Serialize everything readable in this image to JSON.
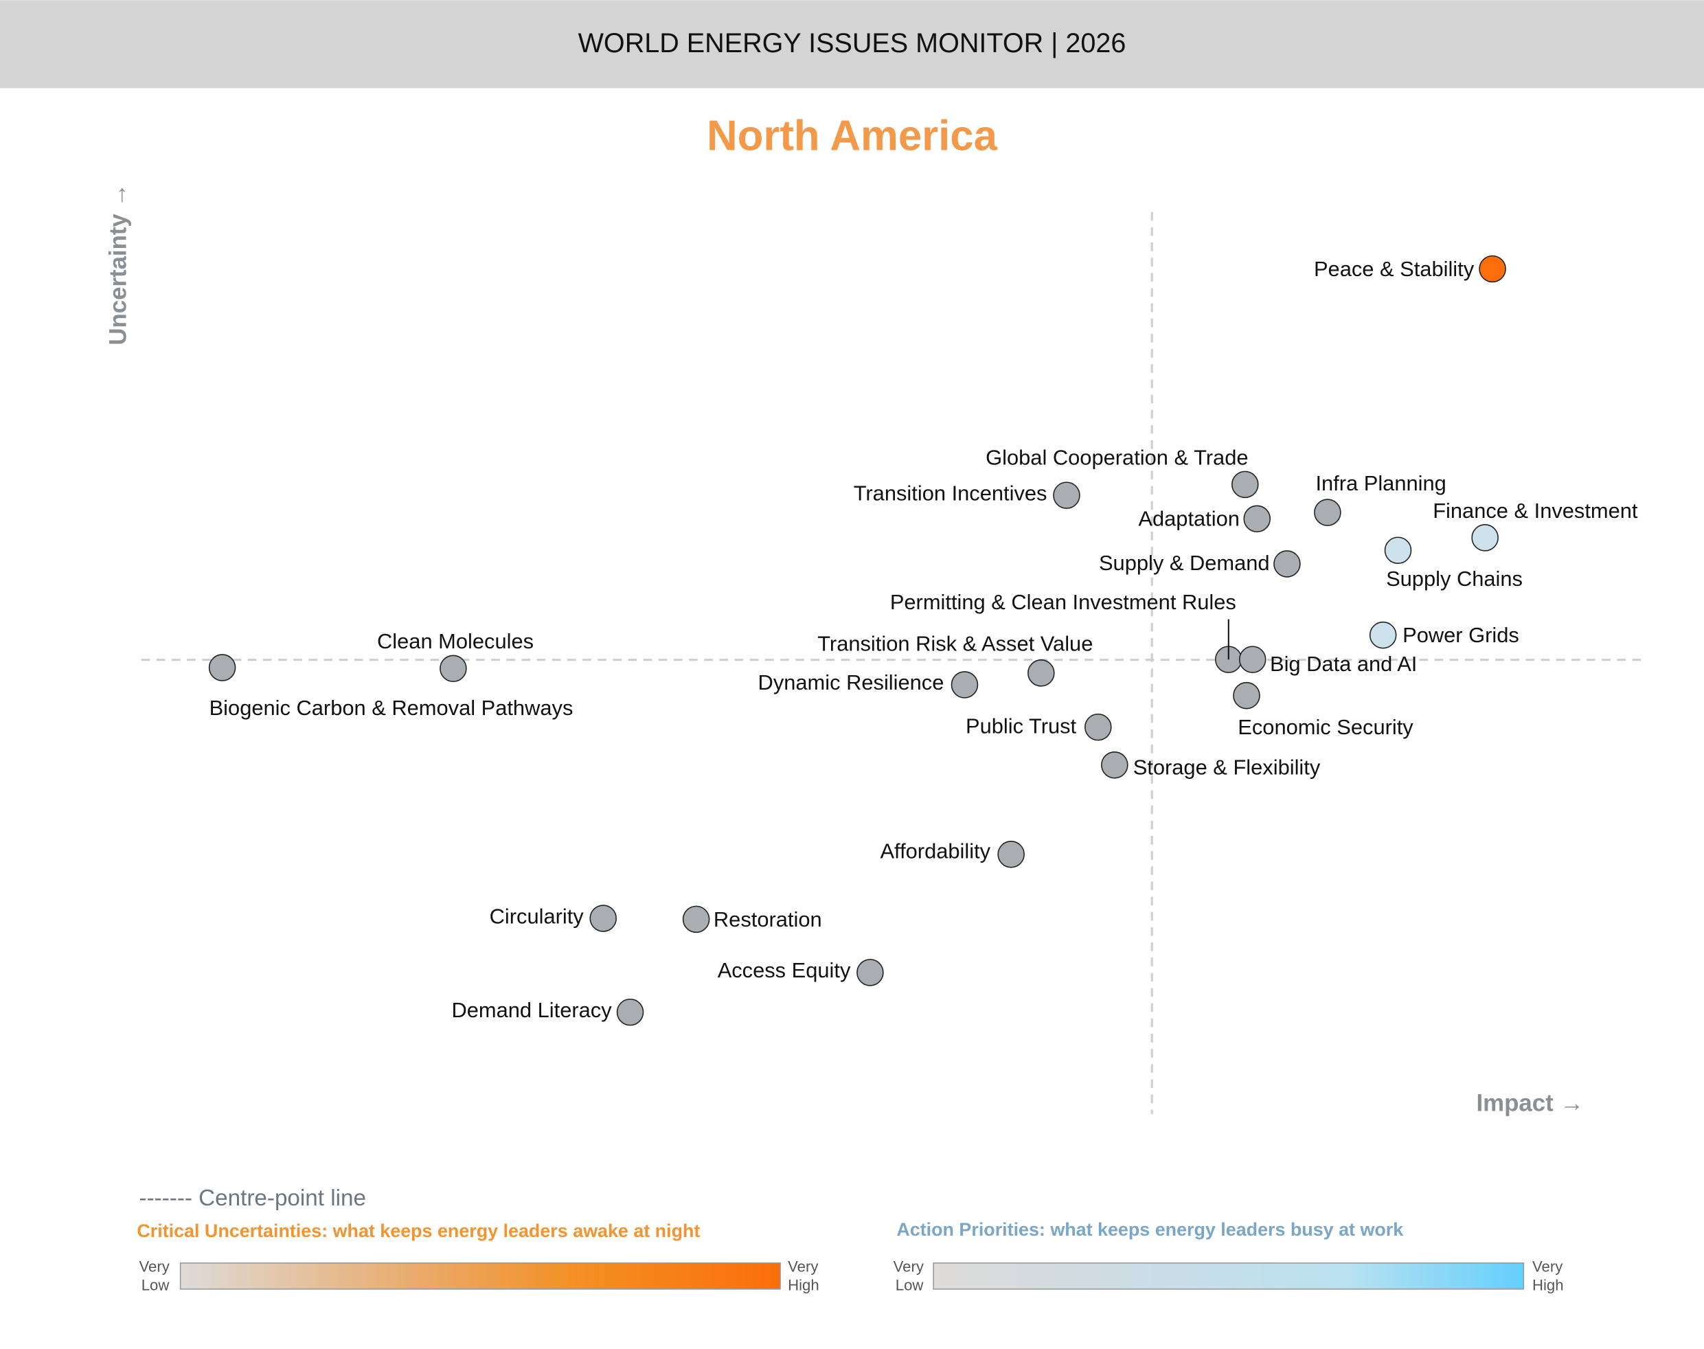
{
  "header": {
    "title": "WORLD ENERGY ISSUES MONITOR | 2026"
  },
  "chart_data": {
    "type": "scatter",
    "title": "North America",
    "xlabel": "Impact →",
    "ylabel": "Uncertainty →",
    "xlim": [
      0,
      100
    ],
    "ylim": [
      0,
      100
    ],
    "grid": false,
    "centre_point": {
      "impact": 67.4,
      "uncertainty": 50.4
    },
    "colors": {
      "critical": "#fb6e0a",
      "neutral": "#a8aeb2",
      "action": "#cde2ec"
    },
    "points": [
      {
        "label": "Peace & Stability",
        "impact": 90.1,
        "uncertainty": 93.7,
        "category": "critical"
      },
      {
        "label": "Global Cooperation & Trade",
        "impact": 73.6,
        "uncertainty": 69.8,
        "category": "neutral"
      },
      {
        "label": "Transition Incentives",
        "impact": 61.7,
        "uncertainty": 68.6,
        "category": "neutral"
      },
      {
        "label": "Infra Planning",
        "impact": 79.1,
        "uncertainty": 66.7,
        "category": "neutral"
      },
      {
        "label": "Adaptation",
        "impact": 74.4,
        "uncertainty": 66.0,
        "category": "neutral"
      },
      {
        "label": "Finance & Investment",
        "impact": 89.6,
        "uncertainty": 63.9,
        "category": "action"
      },
      {
        "label": "Supply Chains",
        "impact": 83.8,
        "uncertainty": 62.5,
        "category": "action"
      },
      {
        "label": "Supply & Demand",
        "impact": 76.4,
        "uncertainty": 61.0,
        "category": "neutral"
      },
      {
        "label": "Power Grids",
        "impact": 82.8,
        "uncertainty": 53.1,
        "category": "action"
      },
      {
        "label": "Permitting & Clean Investment Rules",
        "impact": 72.5,
        "uncertainty": 50.4,
        "category": "neutral"
      },
      {
        "label": "Big Data and AI",
        "impact": 74.1,
        "uncertainty": 50.4,
        "category": "neutral"
      },
      {
        "label": "Clean Molecules",
        "impact": 20.8,
        "uncertainty": 49.4,
        "category": "neutral"
      },
      {
        "label": "Biogenic Carbon & Removal Pathways",
        "impact": 5.4,
        "uncertainty": 49.5,
        "category": "neutral"
      },
      {
        "label": "Transition Risk & Asset Value",
        "impact": 60.0,
        "uncertainty": 48.9,
        "category": "neutral"
      },
      {
        "label": "Dynamic Resilience",
        "impact": 54.9,
        "uncertainty": 47.6,
        "category": "neutral"
      },
      {
        "label": "Economic Security",
        "impact": 73.7,
        "uncertainty": 46.4,
        "category": "neutral"
      },
      {
        "label": "Public Trust",
        "impact": 63.8,
        "uncertainty": 42.9,
        "category": "neutral"
      },
      {
        "label": "Storage & Flexibility",
        "impact": 64.9,
        "uncertainty": 38.7,
        "category": "neutral"
      },
      {
        "label": "Affordability",
        "impact": 58.0,
        "uncertainty": 28.8,
        "category": "neutral"
      },
      {
        "label": "Circularity",
        "impact": 30.8,
        "uncertainty": 21.7,
        "category": "neutral"
      },
      {
        "label": "Restoration",
        "impact": 37.0,
        "uncertainty": 21.6,
        "category": "neutral"
      },
      {
        "label": "Access Equity",
        "impact": 48.6,
        "uncertainty": 15.7,
        "category": "neutral"
      },
      {
        "label": "Demand Literacy",
        "impact": 32.6,
        "uncertainty": 11.3,
        "category": "neutral"
      }
    ]
  },
  "legend": {
    "centre_line": "------- Centre-point line",
    "critical": {
      "title": "Critical Uncertainties: what keeps energy leaders awake at night",
      "low_1": "Very",
      "low_2": "Low",
      "high_1": "Very",
      "high_2": "High",
      "gradient": [
        "#dedbd9",
        "#f0a85f",
        "#f39126",
        "#fb6e0a"
      ]
    },
    "action": {
      "title": "Action Priorities: what keeps energy leaders busy at work",
      "low_1": "Very",
      "low_2": "Low",
      "high_1": "Very",
      "high_2": "High",
      "gradient": [
        "#dedbd9",
        "#c9e0ea",
        "#b7e2f2",
        "#63d0fc"
      ]
    }
  }
}
